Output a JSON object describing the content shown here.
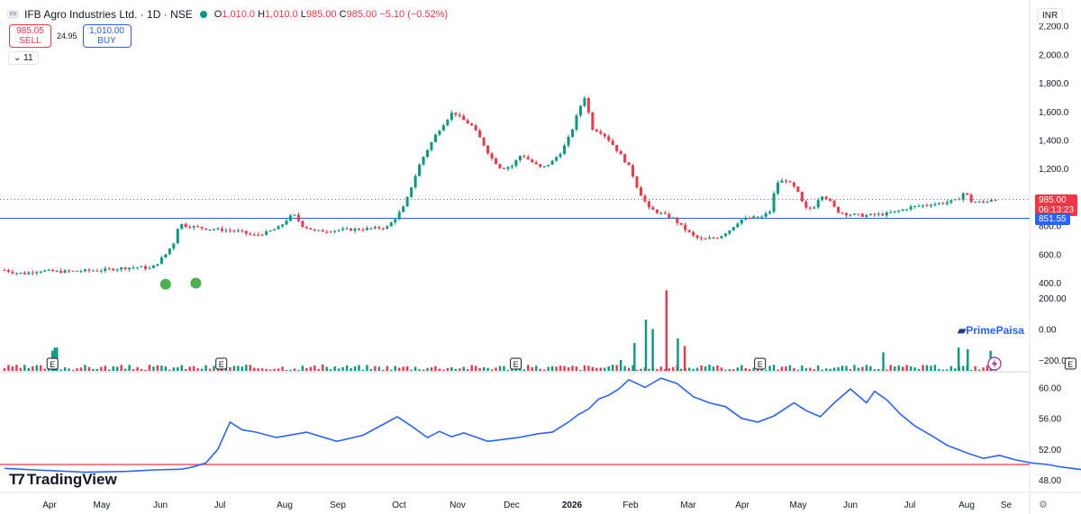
{
  "header": {
    "title": "IFB Agro Industries Ltd. · 1D · NSE",
    "logo_text": "IFB",
    "ohlc": {
      "o_label": "O",
      "o": "1,010.0",
      "h_label": "H",
      "h": "1,010.0",
      "l_label": "L",
      "l": "985.00",
      "c_label": "C",
      "c": "985.00",
      "change": "−5.10 (−0.52%)"
    }
  },
  "trade": {
    "sell_price": "985.05",
    "sell_label": "SELL",
    "spread": "24.95",
    "buy_price": "1,010.00",
    "buy_label": "BUY"
  },
  "indicators_collapse": {
    "icon": "chevron-down-icon",
    "count": "11"
  },
  "currency": "INR",
  "brand": {
    "name": "TradingView",
    "watermark": "PrimePaisa"
  },
  "price_labels": {
    "last": "985.00",
    "countdown": "06:13:23",
    "hline": "851.55"
  },
  "colors": {
    "up": "#089981",
    "down": "#f23645",
    "rsi": "#2962ff",
    "hline": "#2962ff",
    "rsi_level": "#f23645",
    "marker": "#4caf50"
  },
  "chart_data": [
    {
      "type": "candlestick",
      "ylim": [
        300,
        2380
      ],
      "y_ticks": [
        "400.0",
        "600.0",
        "800.0",
        "1,000.0",
        "1,200.0",
        "1,400.0",
        "1,600.0",
        "1,800.0",
        "2,000.0",
        "2,200.0"
      ],
      "y_tick_values": [
        400,
        600,
        800,
        1000,
        1200,
        1400,
        1600,
        1800,
        2000,
        2200
      ],
      "x_tick_labels": [
        "Apr",
        "May",
        "Jun",
        "Jul",
        "Aug",
        "Sep",
        "Oct",
        "Nov",
        "Dec",
        "2026",
        "Feb",
        "Mar",
        "Apr",
        "May",
        "Jun",
        "Jul",
        "Aug",
        "Se"
      ],
      "horizontal_line": 851.55,
      "last_price": 985.0,
      "close_path": [
        [
          0,
          490
        ],
        [
          8,
          470
        ],
        [
          15,
          465
        ],
        [
          25,
          485
        ],
        [
          40,
          478
        ],
        [
          55,
          482
        ],
        [
          75,
          490
        ],
        [
          90,
          505
        ],
        [
          100,
          510
        ],
        [
          108,
          500
        ],
        [
          112,
          520
        ],
        [
          120,
          600
        ],
        [
          126,
          680
        ],
        [
          130,
          820
        ],
        [
          134,
          800
        ],
        [
          150,
          780
        ],
        [
          175,
          760
        ],
        [
          185,
          730
        ],
        [
          195,
          750
        ],
        [
          205,
          790
        ],
        [
          212,
          860
        ],
        [
          216,
          870
        ],
        [
          222,
          800
        ],
        [
          232,
          760
        ],
        [
          250,
          770
        ],
        [
          265,
          775
        ],
        [
          275,
          780
        ],
        [
          285,
          790
        ],
        [
          290,
          840
        ],
        [
          298,
          940
        ],
        [
          304,
          1100
        ],
        [
          310,
          1250
        ],
        [
          316,
          1350
        ],
        [
          322,
          1450
        ],
        [
          326,
          1500
        ],
        [
          334,
          1600
        ],
        [
          340,
          1550
        ],
        [
          348,
          1500
        ],
        [
          355,
          1400
        ],
        [
          362,
          1280
        ],
        [
          370,
          1200
        ],
        [
          378,
          1220
        ],
        [
          385,
          1300
        ],
        [
          392,
          1250
        ],
        [
          400,
          1200
        ],
        [
          408,
          1250
        ],
        [
          415,
          1320
        ],
        [
          422,
          1450
        ],
        [
          428,
          1620
        ],
        [
          432,
          1700
        ],
        [
          438,
          1480
        ],
        [
          445,
          1450
        ],
        [
          452,
          1380
        ],
        [
          460,
          1280
        ],
        [
          466,
          1200
        ],
        [
          472,
          1050
        ],
        [
          480,
          920
        ],
        [
          490,
          880
        ],
        [
          498,
          850
        ],
        [
          506,
          780
        ],
        [
          514,
          720
        ],
        [
          520,
          700
        ],
        [
          525,
          710
        ],
        [
          532,
          720
        ],
        [
          540,
          770
        ],
        [
          548,
          840
        ],
        [
          556,
          855
        ],
        [
          564,
          860
        ],
        [
          570,
          900
        ],
        [
          575,
          1100
        ],
        [
          582,
          1120
        ],
        [
          590,
          1050
        ],
        [
          596,
          920
        ],
        [
          602,
          920
        ],
        [
          608,
          1020
        ],
        [
          614,
          980
        ],
        [
          620,
          900
        ],
        [
          628,
          880
        ],
        [
          640,
          870
        ],
        [
          655,
          880
        ],
        [
          665,
          900
        ],
        [
          675,
          930
        ],
        [
          690,
          950
        ],
        [
          700,
          960
        ],
        [
          710,
          980
        ],
        [
          715,
          1040
        ],
        [
          720,
          970
        ],
        [
          728,
          960
        ],
        [
          735,
          985
        ]
      ],
      "markers": [
        {
          "x": 16,
          "y": 390
        },
        {
          "x": 19,
          "y": 398
        },
        {
          "x": 535,
          "y": 705
        }
      ]
    },
    {
      "type": "bar",
      "name": "",
      "ylim": [
        -270,
        380
      ],
      "y_ticks": [
        "200.00",
        "0.00",
        "−200.00"
      ],
      "y_tick_values": [
        200,
        0,
        -200
      ],
      "events": [
        {
          "x": 21,
          "label": "E"
        },
        {
          "x": 95,
          "label": "E"
        },
        {
          "x": 224,
          "label": "E"
        },
        {
          "x": 331,
          "label": "E"
        },
        {
          "x": 467,
          "label": "E"
        },
        {
          "x": 586,
          "label": "E"
        }
      ],
      "baseline": -270,
      "spikes": [
        {
          "x": 21,
          "v": -140,
          "up": true
        },
        {
          "x": 22,
          "v": -120,
          "up": true
        },
        {
          "x": 23,
          "v": -120,
          "up": true
        },
        {
          "x": 95,
          "v": -230,
          "up": false
        },
        {
          "x": 270,
          "v": -200,
          "up": true
        },
        {
          "x": 276,
          "v": -90,
          "up": true
        },
        {
          "x": 281,
          "v": 60,
          "up": true
        },
        {
          "x": 284,
          "v": 0,
          "up": true
        },
        {
          "x": 290,
          "v": 250,
          "up": false
        },
        {
          "x": 295,
          "v": -60,
          "up": true
        },
        {
          "x": 298,
          "v": -110,
          "up": false
        },
        {
          "x": 385,
          "v": -150,
          "up": true
        },
        {
          "x": 418,
          "v": -120,
          "up": true
        },
        {
          "x": 422,
          "v": -130,
          "up": true
        },
        {
          "x": 432,
          "v": -140,
          "up": true
        },
        {
          "x": 568,
          "v": 110,
          "up": true
        },
        {
          "x": 570,
          "v": 100,
          "up": true
        },
        {
          "x": 683,
          "v": -240,
          "up": true
        },
        {
          "x": 719,
          "v": -245,
          "up": false
        }
      ]
    },
    {
      "type": "line",
      "name": "",
      "ylim": [
        46.5,
        61.8
      ],
      "y_ticks": [
        "48.00",
        "52.00",
        "56.00",
        "60.00"
      ],
      "y_tick_values": [
        48,
        52,
        56,
        60
      ],
      "level": 50,
      "x": [
        0,
        15,
        40,
        60,
        75,
        88,
        92,
        95,
        100,
        106,
        112,
        118,
        125,
        135,
        150,
        165,
        178,
        188,
        195,
        202,
        210,
        216,
        222,
        228,
        240,
        255,
        265,
        272,
        280,
        285,
        290,
        295,
        300,
        305,
        310,
        318,
        326,
        334,
        342,
        350,
        358,
        366,
        374,
        382,
        392,
        398,
        405,
        412,
        420,
        428,
        432,
        438,
        445,
        452,
        460,
        468,
        478,
        486,
        494,
        502,
        510,
        518,
        524,
        530,
        536,
        542,
        548,
        556,
        566,
        572,
        578,
        584,
        590,
        596,
        604,
        612,
        620,
        632,
        640,
        655,
        662,
        670,
        676,
        684,
        692,
        698,
        704,
        712,
        720,
        730,
        738
      ],
      "values": [
        49.5,
        49.3,
        49.0,
        49.1,
        49.3,
        49.4,
        49.6,
        49.8,
        50.2,
        52.0,
        55.5,
        54.5,
        54.2,
        53.5,
        54.2,
        53.0,
        53.8,
        55.2,
        56.2,
        55.0,
        53.5,
        54.3,
        53.6,
        54.1,
        53.0,
        53.5,
        54.0,
        54.2,
        55.5,
        56.5,
        57.2,
        58.5,
        59.0,
        59.8,
        61.0,
        60.0,
        61.2,
        60.5,
        58.8,
        58.0,
        57.5,
        56.0,
        55.5,
        56.3,
        58.0,
        57.0,
        56.2,
        58.0,
        59.8,
        58.0,
        59.5,
        58.4,
        56.5,
        55.0,
        53.8,
        52.5,
        51.5,
        50.8,
        51.2,
        50.6,
        50.2,
        50.0,
        49.7,
        49.5,
        49.3,
        49.5,
        49.4,
        50.0,
        50.4,
        50.6,
        50.8,
        51.4,
        51.9,
        51.2,
        51.0,
        50.8,
        51.6,
        51.8,
        51.0,
        50.7,
        50.6,
        50.8,
        51.0,
        51.1,
        51.3,
        51.0,
        51.2,
        50.9,
        51.0,
        51.3,
        51.5
      ]
    }
  ]
}
